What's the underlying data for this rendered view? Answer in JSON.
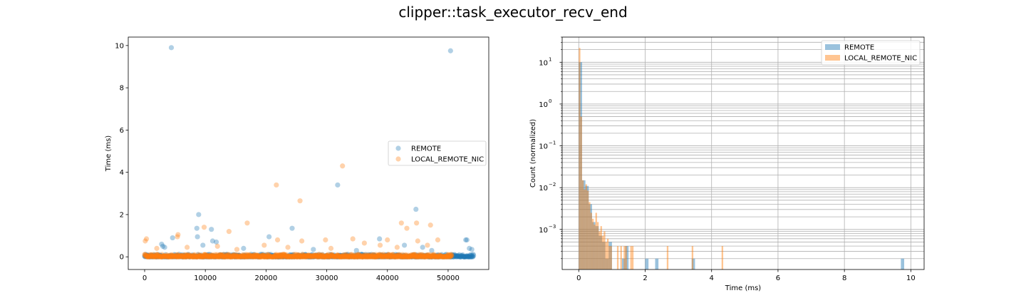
{
  "chart_data": {
    "title": "clipper::task_executor_recv_end",
    "colors": {
      "REMOTE": "#1f77b4",
      "LOCAL_REMOTE_NIC": "#ff7f0e"
    },
    "panels": [
      {
        "type": "scatter",
        "xlabel": "",
        "ylabel": "Time (ms)",
        "xlim": [
          -2700,
          56700
        ],
        "ylim": [
          -0.6,
          10.4
        ],
        "xticks": [
          0,
          10000,
          20000,
          30000,
          40000,
          50000
        ],
        "yticks": [
          0,
          2,
          4,
          6,
          8,
          10
        ],
        "legend_position": "center-right",
        "series": [
          {
            "name": "REMOTE",
            "baseline_x_range": [
              0,
              54200
            ],
            "outliers": [
              {
                "x": 4400,
                "y": 9.9
              },
              {
                "x": 50400,
                "y": 9.75
              },
              {
                "x": 31800,
                "y": 3.4
              },
              {
                "x": 44700,
                "y": 2.25
              },
              {
                "x": 8900,
                "y": 2.0
              },
              {
                "x": 8600,
                "y": 1.35
              },
              {
                "x": 11000,
                "y": 1.3
              },
              {
                "x": 24300,
                "y": 1.35
              },
              {
                "x": 20500,
                "y": 0.95
              },
              {
                "x": 8700,
                "y": 0.95
              },
              {
                "x": 4600,
                "y": 0.9
              },
              {
                "x": 38700,
                "y": 0.85
              },
              {
                "x": 52900,
                "y": 0.8
              },
              {
                "x": 53100,
                "y": 0.8
              },
              {
                "x": 11200,
                "y": 0.75
              },
              {
                "x": 11800,
                "y": 0.7
              },
              {
                "x": 2800,
                "y": 0.6
              },
              {
                "x": 3000,
                "y": 0.5
              },
              {
                "x": 3300,
                "y": 0.45
              },
              {
                "x": 9600,
                "y": 0.55
              },
              {
                "x": 42800,
                "y": 0.55
              },
              {
                "x": 45800,
                "y": 0.45
              },
              {
                "x": 53500,
                "y": 0.4
              },
              {
                "x": 53900,
                "y": 0.35
              },
              {
                "x": 16300,
                "y": 0.4
              },
              {
                "x": 27800,
                "y": 0.35
              },
              {
                "x": 34900,
                "y": 0.3
              },
              {
                "x": 47300,
                "y": 0.3
              }
            ]
          },
          {
            "name": "LOCAL_REMOTE_NIC",
            "baseline_x_range": [
              0,
              50600
            ],
            "outliers": [
              {
                "x": 32600,
                "y": 4.3
              },
              {
                "x": 21700,
                "y": 3.4
              },
              {
                "x": 25600,
                "y": 2.65
              },
              {
                "x": 42300,
                "y": 1.6
              },
              {
                "x": 16900,
                "y": 1.6
              },
              {
                "x": 44800,
                "y": 1.6
              },
              {
                "x": 47100,
                "y": 1.5
              },
              {
                "x": 9800,
                "y": 1.4
              },
              {
                "x": 43200,
                "y": 1.35
              },
              {
                "x": 13900,
                "y": 1.2
              },
              {
                "x": 5500,
                "y": 1.05
              },
              {
                "x": 5400,
                "y": 0.95
              },
              {
                "x": 300,
                "y": 0.85
              },
              {
                "x": 100,
                "y": 0.75
              },
              {
                "x": 21900,
                "y": 0.8
              },
              {
                "x": 29800,
                "y": 0.8
              },
              {
                "x": 34300,
                "y": 0.85
              },
              {
                "x": 40000,
                "y": 0.8
              },
              {
                "x": 45000,
                "y": 0.75
              },
              {
                "x": 48300,
                "y": 0.8
              },
              {
                "x": 25900,
                "y": 0.75
              },
              {
                "x": 19700,
                "y": 0.55
              },
              {
                "x": 36200,
                "y": 0.65
              },
              {
                "x": 38800,
                "y": 0.55
              },
              {
                "x": 12000,
                "y": 0.5
              },
              {
                "x": 7000,
                "y": 0.45
              },
              {
                "x": 30700,
                "y": 0.4
              },
              {
                "x": 46600,
                "y": 0.55
              },
              {
                "x": 2000,
                "y": 0.4
              },
              {
                "x": 23600,
                "y": 0.45
              },
              {
                "x": 41600,
                "y": 0.45
              },
              {
                "x": 15200,
                "y": 0.35
              }
            ]
          }
        ]
      },
      {
        "type": "histogram",
        "xlabel": "Time (ms)",
        "ylabel": "Count (normalized)",
        "xlim": [
          -0.5,
          10.4
        ],
        "ylim_log": [
          0.00011,
          40
        ],
        "yscale": "log",
        "grid": true,
        "xticks": [
          0,
          2,
          4,
          6,
          8,
          10
        ],
        "yticks": [
          {
            "value": 10,
            "label": "10",
            "exp": "1"
          },
          {
            "value": 1,
            "label": "10",
            "exp": "0"
          },
          {
            "value": 0.1,
            "label": "10",
            "exp": "−1"
          },
          {
            "value": 0.01,
            "label": "10",
            "exp": "−2"
          },
          {
            "value": 0.001,
            "label": "10",
            "exp": "−3"
          }
        ],
        "legend_position": "upper-right",
        "series": [
          {
            "name": "REMOTE",
            "bin_width": 0.1,
            "bins": [
              {
                "x": 0.0,
                "v": 10.0
              },
              {
                "x": 0.1,
                "v": 0.015
              },
              {
                "x": 0.2,
                "v": 0.011
              },
              {
                "x": 0.3,
                "v": 0.004
              },
              {
                "x": 0.4,
                "v": 0.0015
              },
              {
                "x": 0.5,
                "v": 0.0012
              },
              {
                "x": 0.6,
                "v": 0.0007
              },
              {
                "x": 0.7,
                "v": 0.0005
              },
              {
                "x": 0.8,
                "v": 0.0002
              },
              {
                "x": 0.9,
                "v": 0.0005
              },
              {
                "x": 1.3,
                "v": 0.0002
              },
              {
                "x": 1.4,
                "v": 0.0004
              },
              {
                "x": 2.0,
                "v": 0.0002
              },
              {
                "x": 2.3,
                "v": 0.0002
              },
              {
                "x": 3.4,
                "v": 0.0002
              },
              {
                "x": 9.7,
                "v": 0.0002
              }
            ]
          },
          {
            "name": "LOCAL_REMOTE_NIC",
            "bin_width": 0.05,
            "bins": [
              {
                "x": 0.0,
                "v": 22.0
              },
              {
                "x": 0.05,
                "v": 0.5
              },
              {
                "x": 0.1,
                "v": 0.015
              },
              {
                "x": 0.15,
                "v": 0.009
              },
              {
                "x": 0.2,
                "v": 0.012
              },
              {
                "x": 0.25,
                "v": 0.0085
              },
              {
                "x": 0.3,
                "v": 0.0045
              },
              {
                "x": 0.35,
                "v": 0.0025
              },
              {
                "x": 0.4,
                "v": 0.0018
              },
              {
                "x": 0.45,
                "v": 0.0013
              },
              {
                "x": 0.5,
                "v": 0.0025
              },
              {
                "x": 0.55,
                "v": 0.0015
              },
              {
                "x": 0.6,
                "v": 0.0009
              },
              {
                "x": 0.65,
                "v": 0.0012
              },
              {
                "x": 0.7,
                "v": 0.0007
              },
              {
                "x": 0.75,
                "v": 0.0009
              },
              {
                "x": 0.8,
                "v": 0.0005
              },
              {
                "x": 0.85,
                "v": 0.0006
              },
              {
                "x": 0.9,
                "v": 0.0004
              },
              {
                "x": 0.95,
                "v": 0.0004
              },
              {
                "x": 1.15,
                "v": 0.0004
              },
              {
                "x": 1.25,
                "v": 0.0004
              },
              {
                "x": 1.35,
                "v": 0.0004
              },
              {
                "x": 1.4,
                "v": 0.0004
              },
              {
                "x": 1.55,
                "v": 0.0004
              },
              {
                "x": 1.6,
                "v": 0.0004
              },
              {
                "x": 2.65,
                "v": 0.0004
              },
              {
                "x": 3.4,
                "v": 0.0004
              },
              {
                "x": 4.3,
                "v": 0.0004
              }
            ]
          }
        ]
      }
    ]
  }
}
